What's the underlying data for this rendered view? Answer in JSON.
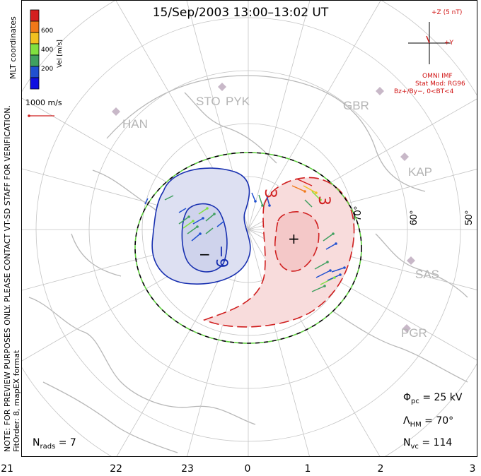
{
  "title": "15/Sep/2003 13:00–13:02 UT",
  "side_note": {
    "line1": "NOTE: FOR PREVIEW PURPOSES ONLY. PLEASE CONTACT VT-SD STAFF FOR VERIFICATION.",
    "line2": "FitOrder: 8, mapEX format"
  },
  "coords_label": "MLT coordinates",
  "velocity_scale": {
    "label": "Vel [m/s]",
    "ticks": [
      "600",
      "400",
      "200"
    ],
    "colors": [
      "#d42020",
      "#f07818",
      "#f0c020",
      "#80e040",
      "#40a060",
      "#2050d0",
      "#1010e0"
    ]
  },
  "vector_scale_label": "1000 m/s",
  "imf": {
    "plus_z": "+Z (5 nT)",
    "plus_y": "+Y",
    "title": "OMNI IMF",
    "stat_mod": "Stat Mod: RG96",
    "condition": "Bz+/By−, 0<BT<4"
  },
  "stations": [
    "HAN",
    "STO",
    "PYK",
    "GBR",
    "KAP",
    "SAS",
    "PGR"
  ],
  "latitude_labels": [
    "70°",
    "60°",
    "50°"
  ],
  "mlt_labels": [
    "21",
    "22",
    "23",
    "0",
    "1",
    "2",
    "3"
  ],
  "contours": {
    "negative_label": "−9",
    "positive_label": "3",
    "positive_label2": "3",
    "min_marker": "−",
    "max_marker": "+",
    "negative_color": "#1830b0",
    "positive_color": "#d02020"
  },
  "stats": {
    "phi_symbol": "Φ",
    "phi_sub": "pc",
    "phi_value": " = 25 kV",
    "lambda_symbol": "Λ",
    "lambda_sub": "HM",
    "lambda_value": " = 70°",
    "nvc_symbol": "N",
    "nvc_sub": "vc",
    "nvc_value": " = 114",
    "nrads_symbol": "N",
    "nrads_sub": "rads",
    "nrads_value": " = 7"
  }
}
